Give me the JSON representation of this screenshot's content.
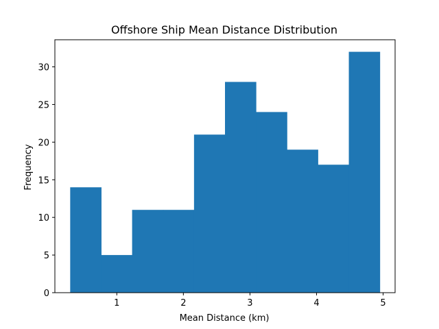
{
  "chart_data": {
    "type": "bar",
    "title": "Offshore Ship Mean Distance Distribution",
    "xlabel": "Mean Distance (km)",
    "ylabel": "Frequency",
    "bin_edges": [
      0.3,
      0.765,
      1.23,
      1.695,
      2.16,
      2.625,
      3.09,
      3.555,
      4.02,
      4.485,
      4.95
    ],
    "values": [
      14,
      5,
      11,
      11,
      21,
      28,
      24,
      19,
      17,
      32
    ],
    "xlim": [
      0.07,
      5.18
    ],
    "ylim": [
      0,
      33.6
    ],
    "xticks": [
      1,
      2,
      3,
      4,
      5
    ],
    "yticks": [
      0,
      5,
      10,
      15,
      20,
      25,
      30
    ],
    "bar_color": "#1f77b4",
    "grid": false
  }
}
